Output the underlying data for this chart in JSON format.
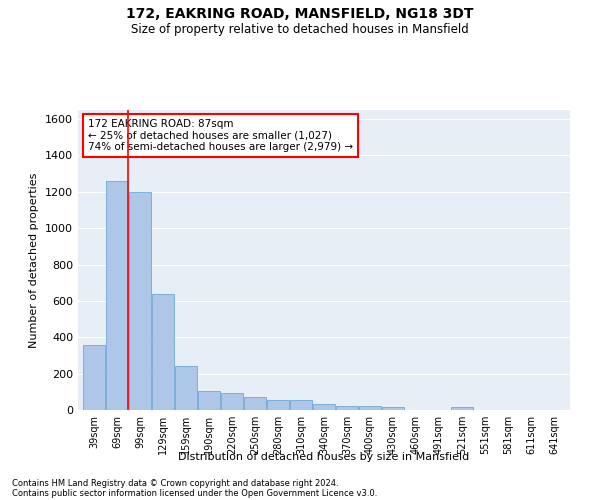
{
  "title1": "172, EAKRING ROAD, MANSFIELD, NG18 3DT",
  "title2": "Size of property relative to detached houses in Mansfield",
  "xlabel": "Distribution of detached houses by size in Mansfield",
  "ylabel": "Number of detached properties",
  "categories": [
    "39sqm",
    "69sqm",
    "99sqm",
    "129sqm",
    "159sqm",
    "190sqm",
    "220sqm",
    "250sqm",
    "280sqm",
    "310sqm",
    "340sqm",
    "370sqm",
    "400sqm",
    "430sqm",
    "460sqm",
    "491sqm",
    "521sqm",
    "551sqm",
    "581sqm",
    "611sqm",
    "641sqm"
  ],
  "values": [
    360,
    1260,
    1200,
    640,
    240,
    105,
    95,
    70,
    55,
    55,
    35,
    20,
    20,
    18,
    0,
    0,
    15,
    0,
    0,
    0,
    0
  ],
  "bar_color": "#aec6e8",
  "bar_edge_color": "#5a9fd4",
  "red_line_label": "172 EAKRING ROAD: 87sqm",
  "annotation_line1": "← 25% of detached houses are smaller (1,027)",
  "annotation_line2": "74% of semi-detached houses are larger (2,979) →",
  "ylim": [
    0,
    1650
  ],
  "yticks": [
    0,
    200,
    400,
    600,
    800,
    1000,
    1200,
    1400,
    1600
  ],
  "footnote1": "Contains HM Land Registry data © Crown copyright and database right 2024.",
  "footnote2": "Contains public sector information licensed under the Open Government Licence v3.0.",
  "bg_color": "#e8eef5",
  "grid_color": "#ffffff",
  "red_line_x": 1.48
}
